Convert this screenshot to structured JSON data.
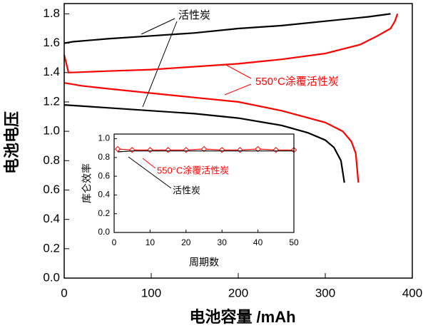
{
  "chart_data": [
    {
      "type": "line",
      "xlabel": "电池容量 /mAh",
      "ylabel": "电池电压",
      "xlim": [
        0,
        400
      ],
      "xticks": [
        0,
        100,
        200,
        300,
        400
      ],
      "ylim": [
        0,
        1.87
      ],
      "yticks": [
        {
          "value": 0,
          "label": "0.0"
        },
        0.2,
        0.4,
        0.6,
        0.8,
        {
          "value": 1,
          "label": "1.0"
        },
        1.2,
        1.4,
        1.6,
        1.8
      ],
      "series": [
        {
          "name": "活性炭",
          "color": "#000000",
          "x": [
            0,
            10,
            50,
            100,
            150,
            200,
            250,
            300,
            350,
            375,
            null,
            0,
            50,
            100,
            150,
            200,
            250,
            280,
            300,
            310,
            318,
            322
          ],
          "values": [
            1.6,
            1.61,
            1.63,
            1.65,
            1.67,
            1.7,
            1.72,
            1.75,
            1.78,
            1.8,
            null,
            1.18,
            1.16,
            1.14,
            1.12,
            1.09,
            1.04,
            0.99,
            0.94,
            0.89,
            0.8,
            0.65
          ]
        },
        {
          "name": "550°C涂覆活性炭",
          "color": "#ff0000",
          "x": [
            0,
            5,
            50,
            100,
            150,
            200,
            250,
            300,
            340,
            360,
            375,
            380,
            383,
            null,
            0,
            20,
            50,
            100,
            150,
            200,
            250,
            300,
            320,
            330,
            335,
            338
          ],
          "values": [
            1.52,
            1.4,
            1.41,
            1.42,
            1.44,
            1.46,
            1.49,
            1.53,
            1.59,
            1.65,
            1.7,
            1.75,
            1.8,
            null,
            1.33,
            1.31,
            1.29,
            1.26,
            1.23,
            1.2,
            1.14,
            1.06,
            1.0,
            0.93,
            0.85,
            0.65
          ]
        }
      ]
    },
    {
      "type": "line",
      "xlabel": "周期数",
      "ylabel": "库仑效率",
      "xlim": [
        0,
        50
      ],
      "xticks": [
        0,
        10,
        20,
        30,
        40,
        50
      ],
      "ylim": [
        0,
        1.05
      ],
      "yticks": [
        {
          "value": 0,
          "label": "0.0"
        },
        0.2,
        0.4,
        0.6,
        0.8,
        {
          "value": 1,
          "label": "1.0"
        }
      ],
      "series": [
        {
          "name": "550°C涂覆活性炭",
          "color": "#ff0000",
          "marker": true,
          "x": [
            1,
            5,
            10,
            15,
            20,
            25,
            30,
            35,
            40,
            45,
            50
          ],
          "values": [
            0.89,
            0.88,
            0.88,
            0.88,
            0.88,
            0.89,
            0.88,
            0.88,
            0.89,
            0.88,
            0.88
          ]
        },
        {
          "name": "活性炭",
          "color": "#000000",
          "x": [
            1,
            5,
            10,
            15,
            20,
            25,
            30,
            35,
            40,
            45,
            50
          ],
          "values": [
            0.86,
            0.87,
            0.87,
            0.87,
            0.87,
            0.87,
            0.87,
            0.87,
            0.87,
            0.87,
            0.87
          ]
        }
      ]
    }
  ]
}
